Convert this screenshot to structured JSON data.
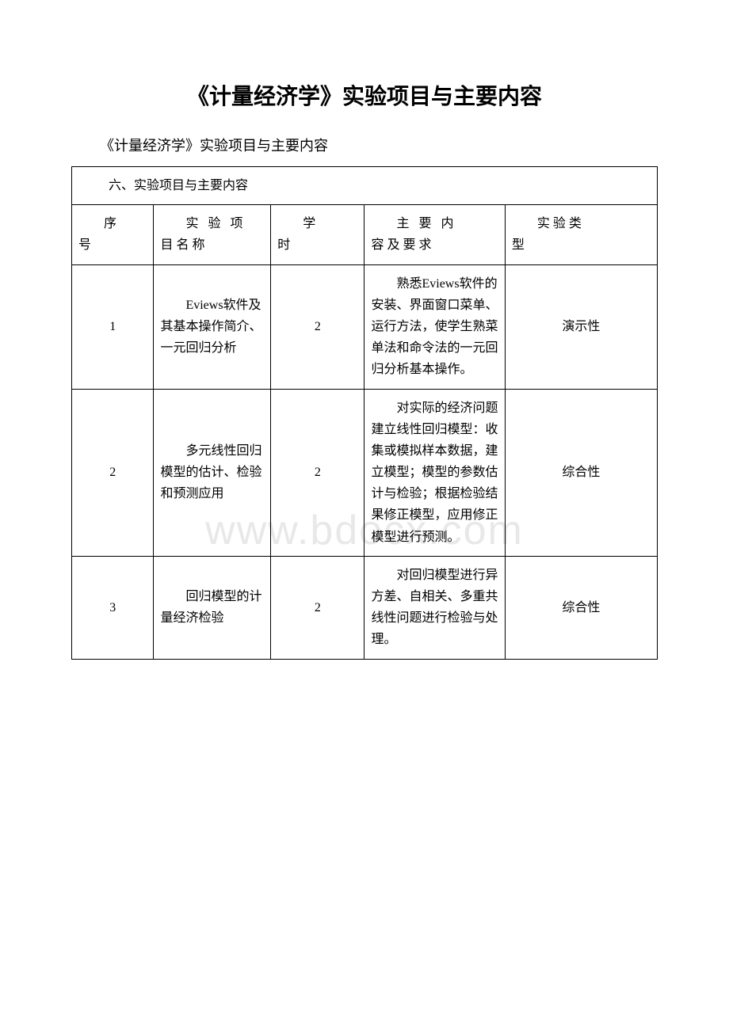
{
  "page": {
    "main_title": "《计量经济学》实验项目与主要内容",
    "subtitle": "《计量经济学》实验项目与主要内容",
    "watermark": "www.bdocx.com"
  },
  "table": {
    "section_header": "六、实验项目与主要内容",
    "headers": {
      "seq_l1": "序",
      "seq_l2": "号",
      "name_l1": "实 验 项",
      "name_l2": "目 名 称",
      "hours_l1": "学",
      "hours_l2": "时",
      "content_l1": "主 要 内",
      "content_l2": "容 及 要 求",
      "type_l1": "实验类",
      "type_l2": "型"
    },
    "rows": [
      {
        "seq": "1",
        "name": "Eviews软件及其基本操作简介、一元回归分析",
        "hours": "2",
        "content": "熟悉Eviews软件的安装、界面窗口菜单、运行方法，使学生熟菜单法和命令法的一元回归分析基本操作。",
        "type": "演示性"
      },
      {
        "seq": "2",
        "name": "多元线性回归模型的估计、检验和预测应用",
        "hours": "2",
        "content": "对实际的经济问题建立线性回归模型：收集或模拟样本数据，建立模型；模型的参数估计与检验；根据检验结果修正模型，应用修正模型进行预测。",
        "type": "综合性"
      },
      {
        "seq": "3",
        "name": "回归模型的计量经济检验",
        "hours": "2",
        "content": "对回归模型进行异方差、自相关、多重共线性问题进行检验与处理。",
        "type": "综合性"
      }
    ]
  }
}
